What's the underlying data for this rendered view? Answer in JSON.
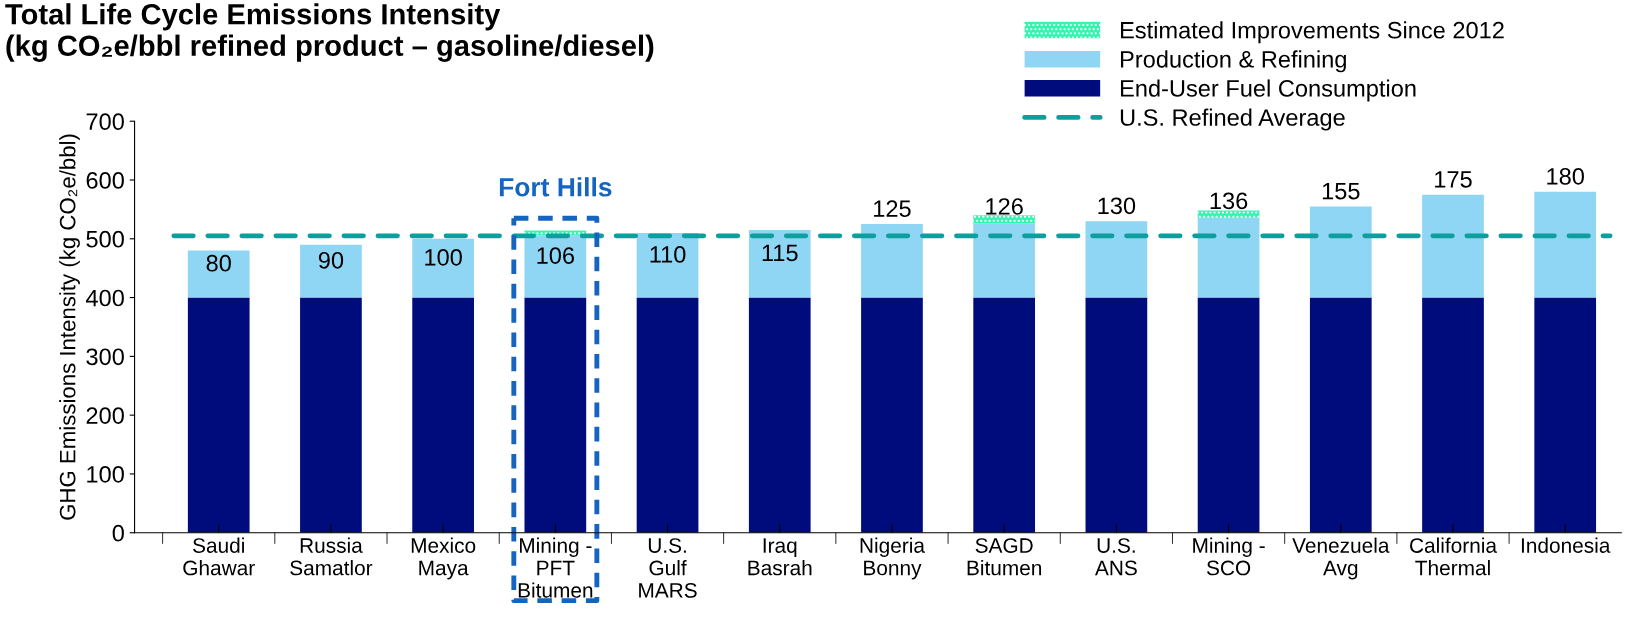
{
  "chart_data": {
    "type": "bar",
    "title": "Total Life Cycle Emissions Intensity\n(kg CO₂e/bbl refined product – gasoline/diesel)",
    "ylabel": "GHG Emissions Intensity (kg CO₂e/bbl)",
    "categories": [
      "Saudi\nGhawar",
      "Russia\nSamatlor",
      "Mexico\nMaya",
      "Mining -\nPFT\nBitumen",
      "U.S.\nGulf\nMARS",
      "Iraq\nBasrah",
      "Nigeria\nBonny",
      "SAGD\nBitumen",
      "U.S.\nANS",
      "Mining -\nSCO",
      "Venezuela\nAvg",
      "California\nThermal",
      "Indonesia"
    ],
    "stacked": true,
    "series": [
      {
        "name": "End-User Fuel Consumption",
        "color": "#000c7b",
        "values": [
          400,
          400,
          400,
          400,
          400,
          400,
          400,
          400,
          400,
          400,
          400,
          400,
          400
        ]
      },
      {
        "name": "Production & Refining",
        "color": "#8fd5f4",
        "values": [
          80,
          90,
          100,
          106,
          110,
          115,
          125,
          126,
          130,
          136,
          155,
          175,
          180
        ],
        "value_labels": [
          "80",
          "90",
          "100",
          "106",
          "110",
          "115",
          "125",
          "126",
          "130",
          "136",
          "155",
          "175",
          "180"
        ]
      },
      {
        "name": "Estimated Improvements Since 2012",
        "color": "#33f5b0",
        "values": [
          null,
          null,
          null,
          8,
          null,
          null,
          null,
          14,
          null,
          12,
          null,
          null,
          null
        ]
      }
    ],
    "ref_lines": [
      {
        "axis": "y",
        "value": 505,
        "label": "U.S. Refined Average",
        "color": "#0e9e9e",
        "line_style": "dashed"
      }
    ],
    "annotations": [
      {
        "text": "Fort Hills",
        "x": "Mining -\nPFT\nBitumen",
        "y": 514
      }
    ],
    "ylim": [
      0,
      700
    ],
    "yticks": [
      0,
      100,
      200,
      300,
      400,
      500,
      600,
      700
    ],
    "grid": false,
    "legend": "top right"
  }
}
